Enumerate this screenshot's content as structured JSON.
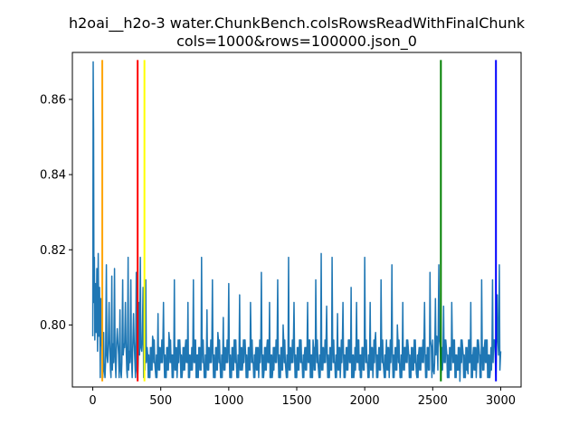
{
  "chart_data": {
    "type": "line",
    "title_lines": [
      "h2oai__h2o-3 water.ChunkBench.colsRowsReadWithFinalChunk",
      "cols=1000&rows=100000.json_0"
    ],
    "xlabel": "",
    "ylabel": "",
    "xlim": [
      -150,
      3150
    ],
    "ylim": [
      0.7835,
      0.8725
    ],
    "xticks": [
      0,
      500,
      1000,
      1500,
      2000,
      2500,
      3000
    ],
    "yticks": [
      0.8,
      0.82,
      0.84,
      0.86
    ],
    "ytick_labels": [
      "0.80",
      "0.82",
      "0.84",
      "0.86"
    ],
    "grid": false,
    "series": [
      {
        "color": "#1f77b4",
        "baseline_levels": [
          0.786,
          0.788,
          0.79,
          0.792,
          0.794,
          0.796
        ],
        "points": [
          [
            0,
            0.797
          ],
          [
            3,
            0.87
          ],
          [
            6,
            0.852
          ],
          [
            9,
            0.806
          ],
          [
            12,
            0.818
          ],
          [
            15,
            0.796
          ],
          [
            20,
            0.811
          ],
          [
            25,
            0.798
          ],
          [
            30,
            0.815
          ],
          [
            35,
            0.793
          ],
          [
            40,
            0.819
          ],
          [
            45,
            0.797
          ],
          [
            50,
            0.81
          ],
          [
            55,
            0.786
          ],
          [
            60,
            0.807
          ],
          [
            70,
            0.793
          ],
          [
            80,
            0.798
          ],
          [
            90,
            0.786
          ],
          [
            100,
            0.816
          ],
          [
            110,
            0.79
          ],
          [
            120,
            0.806
          ],
          [
            130,
            0.788
          ],
          [
            140,
            0.813
          ],
          [
            150,
            0.795
          ],
          [
            160,
            0.815
          ],
          [
            170,
            0.786
          ],
          [
            180,
            0.799
          ],
          [
            190,
            0.792
          ],
          [
            200,
            0.804
          ],
          [
            210,
            0.786
          ],
          [
            220,
            0.812
          ],
          [
            230,
            0.795
          ],
          [
            240,
            0.806
          ],
          [
            250,
            0.788
          ],
          [
            260,
            0.818
          ],
          [
            270,
            0.793
          ],
          [
            280,
            0.812
          ],
          [
            290,
            0.786
          ],
          [
            300,
            0.803
          ],
          [
            310,
            0.79
          ],
          [
            320,
            0.814
          ],
          [
            330,
            0.786
          ],
          [
            340,
            0.806
          ],
          [
            350,
            0.818
          ],
          [
            360,
            0.793
          ],
          [
            370,
            0.81
          ],
          [
            380,
            0.788
          ],
          [
            390,
            0.812
          ],
          [
            400,
            0.794
          ],
          [
            420,
            0.786
          ],
          [
            440,
            0.797
          ],
          [
            460,
            0.788
          ],
          [
            480,
            0.803
          ],
          [
            500,
            0.79
          ],
          [
            520,
            0.806
          ],
          [
            540,
            0.786
          ],
          [
            560,
            0.798
          ],
          [
            580,
            0.792
          ],
          [
            600,
            0.812
          ],
          [
            620,
            0.786
          ],
          [
            640,
            0.796
          ],
          [
            660,
            0.788
          ],
          [
            680,
            0.794
          ],
          [
            700,
            0.806
          ],
          [
            720,
            0.788
          ],
          [
            740,
            0.812
          ],
          [
            760,
            0.786
          ],
          [
            780,
            0.794
          ],
          [
            800,
            0.818
          ],
          [
            820,
            0.786
          ],
          [
            840,
            0.804
          ],
          [
            860,
            0.79
          ],
          [
            880,
            0.812
          ],
          [
            900,
            0.786
          ],
          [
            920,
            0.798
          ],
          [
            940,
            0.786
          ],
          [
            960,
            0.802
          ],
          [
            980,
            0.79
          ],
          [
            1000,
            0.811
          ],
          [
            1020,
            0.786
          ],
          [
            1040,
            0.796
          ],
          [
            1060,
            0.786
          ],
          [
            1080,
            0.808
          ],
          [
            1100,
            0.788
          ],
          [
            1120,
            0.796
          ],
          [
            1140,
            0.786
          ],
          [
            1160,
            0.806
          ],
          [
            1180,
            0.79
          ],
          [
            1200,
            0.794
          ],
          [
            1220,
            0.786
          ],
          [
            1240,
            0.814
          ],
          [
            1260,
            0.788
          ],
          [
            1280,
            0.794
          ],
          [
            1300,
            0.806
          ],
          [
            1320,
            0.786
          ],
          [
            1340,
            0.794
          ],
          [
            1360,
            0.812
          ],
          [
            1380,
            0.786
          ],
          [
            1400,
            0.8
          ],
          [
            1420,
            0.788
          ],
          [
            1440,
            0.818
          ],
          [
            1460,
            0.79
          ],
          [
            1480,
            0.806
          ],
          [
            1500,
            0.786
          ],
          [
            1520,
            0.796
          ],
          [
            1540,
            0.79
          ],
          [
            1560,
            0.794
          ],
          [
            1580,
            0.806
          ],
          [
            1600,
            0.786
          ],
          [
            1620,
            0.796
          ],
          [
            1640,
            0.812
          ],
          [
            1660,
            0.788
          ],
          [
            1680,
            0.819
          ],
          [
            1700,
            0.79
          ],
          [
            1720,
            0.805
          ],
          [
            1740,
            0.786
          ],
          [
            1760,
            0.818
          ],
          [
            1780,
            0.79
          ],
          [
            1800,
            0.803
          ],
          [
            1820,
            0.786
          ],
          [
            1840,
            0.806
          ],
          [
            1860,
            0.79
          ],
          [
            1880,
            0.796
          ],
          [
            1900,
            0.81
          ],
          [
            1920,
            0.786
          ],
          [
            1940,
            0.806
          ],
          [
            1960,
            0.788
          ],
          [
            1980,
            0.794
          ],
          [
            2000,
            0.818
          ],
          [
            2020,
            0.79
          ],
          [
            2040,
            0.806
          ],
          [
            2060,
            0.786
          ],
          [
            2080,
            0.798
          ],
          [
            2100,
            0.79
          ],
          [
            2120,
            0.812
          ],
          [
            2140,
            0.788
          ],
          [
            2160,
            0.796
          ],
          [
            2180,
            0.786
          ],
          [
            2200,
            0.816
          ],
          [
            2220,
            0.79
          ],
          [
            2240,
            0.8
          ],
          [
            2260,
            0.786
          ],
          [
            2280,
            0.806
          ],
          [
            2300,
            0.794
          ],
          [
            2320,
            0.794
          ],
          [
            2340,
            0.786
          ],
          [
            2360,
            0.788
          ],
          [
            2380,
            0.787
          ],
          [
            2400,
            0.794
          ],
          [
            2420,
            0.794
          ],
          [
            2440,
            0.806
          ],
          [
            2460,
            0.794
          ],
          [
            2480,
            0.814
          ],
          [
            2490,
            0.794
          ],
          [
            2500,
            0.796
          ],
          [
            2510,
            0.787
          ],
          [
            2520,
            0.807
          ],
          [
            2530,
            0.797
          ],
          [
            2545,
            0.816
          ],
          [
            2555,
            0.794
          ],
          [
            2560,
            0.787
          ],
          [
            2580,
            0.805
          ],
          [
            2600,
            0.794
          ],
          [
            2620,
            0.786
          ],
          [
            2640,
            0.806
          ],
          [
            2660,
            0.796
          ],
          [
            2680,
            0.788
          ],
          [
            2700,
            0.785
          ],
          [
            2720,
            0.794
          ],
          [
            2740,
            0.786
          ],
          [
            2760,
            0.787
          ],
          [
            2780,
            0.806
          ],
          [
            2800,
            0.794
          ],
          [
            2820,
            0.786
          ],
          [
            2840,
            0.794
          ],
          [
            2860,
            0.812
          ],
          [
            2880,
            0.794
          ],
          [
            2900,
            0.796
          ],
          [
            2920,
            0.786
          ],
          [
            2940,
            0.812
          ],
          [
            2955,
            0.796
          ],
          [
            2965,
            0.786
          ],
          [
            2975,
            0.808
          ],
          [
            2985,
            0.792
          ],
          [
            2990,
            0.816
          ],
          [
            3000,
            0.793
          ]
        ]
      }
    ],
    "vlines": [
      {
        "x": 70,
        "color": "#ffa500",
        "ymin": 0.785,
        "ymax": 0.8705
      },
      {
        "x": 330,
        "color": "#ff0000",
        "ymin": 0.785,
        "ymax": 0.8705
      },
      {
        "x": 380,
        "color": "#ffff00",
        "ymin": 0.785,
        "ymax": 0.8705
      },
      {
        "x": 2560,
        "color": "#008000",
        "ymin": 0.785,
        "ymax": 0.8705
      },
      {
        "x": 2965,
        "color": "#0000ff",
        "ymin": 0.785,
        "ymax": 0.8705
      }
    ]
  }
}
